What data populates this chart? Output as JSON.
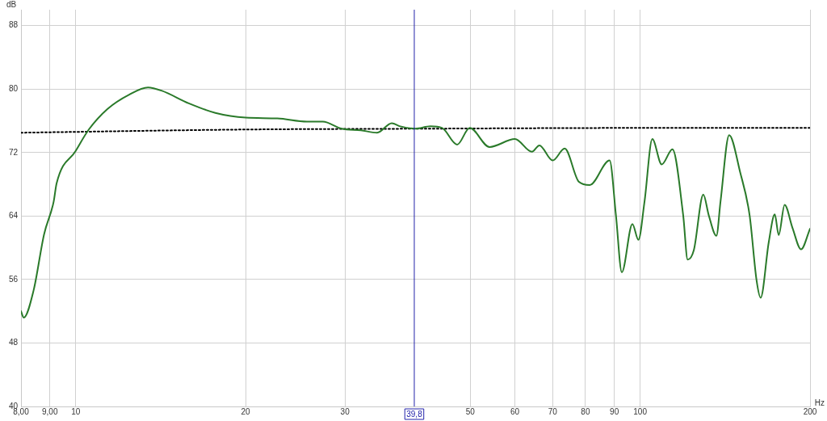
{
  "chart_data": {
    "type": "line",
    "xlabel": "Hz",
    "ylabel": "dB",
    "log": "x",
    "xlim": [
      8,
      200
    ],
    "ylim": [
      40,
      90
    ],
    "xticks": [
      {
        "value": 8,
        "label": "8,00"
      },
      {
        "value": 9,
        "label": "9,00"
      },
      10,
      20,
      30,
      50,
      60,
      70,
      80,
      90,
      100,
      200
    ],
    "yticks": [
      40,
      48,
      56,
      64,
      72,
      80,
      88
    ],
    "grid": true,
    "legend": false,
    "marker": "none",
    "ref_lines": [
      {
        "axis": "x",
        "value": 39.8,
        "label": "39,8",
        "color": "#2222aa"
      }
    ],
    "series": [
      {
        "color": "#2a7a2a",
        "line_style": "solid",
        "x": [
          8,
          8.09,
          8.42,
          8.79,
          9.14,
          9.25,
          10.0,
          10.55,
          11.39,
          12.44,
          13.43,
          14.19,
          15.86,
          17.68,
          20.0,
          22.76,
          25.68,
          27.4,
          29.6,
          32.0,
          34.2,
          36.3,
          37.6,
          40.0,
          42.5,
          44.6,
          47.4,
          49.9,
          54.1,
          60,
          64.3,
          66.3,
          70,
          73.5,
          77.9,
          81.4,
          88.3,
          90.6,
          92.8,
          96.9,
          99.3,
          101.8,
          105.1,
          109.2,
          114.1,
          119.2,
          121.4,
          124.5,
          129.4,
          132.3,
          136.5,
          138.8,
          143.8,
          150.4,
          156.3,
          160.8,
          163.5,
          169.0,
          173.2,
          176.0,
          180.3,
          186.2,
          192.8,
          200
        ],
        "values": [
          52.0,
          51.2,
          54.6,
          61.7,
          65.8,
          68.1,
          72.2,
          74.9,
          77.5,
          79.3,
          80.2,
          79.8,
          78.2,
          77.0,
          76.4,
          76.3,
          75.9,
          75.9,
          75.0,
          74.8,
          74.5,
          75.7,
          75.3,
          75.0,
          75.3,
          75.1,
          73.0,
          75.1,
          72.7,
          73.7,
          72.1,
          72.9,
          71.0,
          72.5,
          68.3,
          67.9,
          71.0,
          64.1,
          56.9,
          63.0,
          61.0,
          65.8,
          73.7,
          70.5,
          72.4,
          64.1,
          58.5,
          59.7,
          66.7,
          64.1,
          61.5,
          65.8,
          74.2,
          69.5,
          64.1,
          55.9,
          53.7,
          60.7,
          64.2,
          61.6,
          65.4,
          62.5,
          59.8,
          62.4
        ]
      },
      {
        "color": "#000000",
        "line_style": "dotted",
        "x": [
          8,
          20,
          40,
          100,
          200
        ],
        "values": [
          74.5,
          74.9,
          75.0,
          75.1,
          75.1
        ]
      }
    ]
  }
}
